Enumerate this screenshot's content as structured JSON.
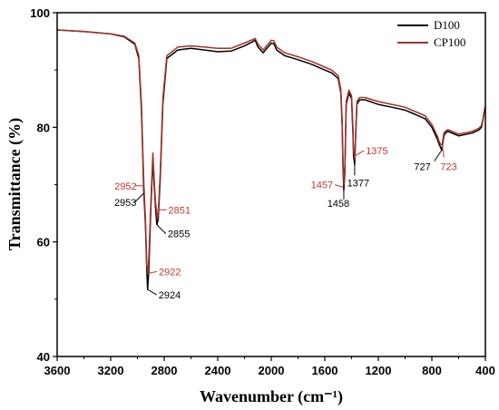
{
  "chart_data": {
    "type": "line",
    "xlabel": "Wavenumber (cm⁻¹)",
    "ylabel": "Transmittance (%)",
    "xlim": [
      3600,
      400
    ],
    "ylim": [
      40,
      100
    ],
    "x_ticks": [
      "3600",
      "3200",
      "2800",
      "2400",
      "2000",
      "1600",
      "1200",
      "800",
      "400"
    ],
    "y_ticks": [
      "40",
      "60",
      "80",
      "100"
    ],
    "legend_position": "top-right",
    "series": [
      {
        "name": "D100",
        "color": "#000000",
        "x": [
          3600,
          3400,
          3200,
          3100,
          3020,
          2990,
          2970,
          2960,
          2953,
          2940,
          2930,
          2924,
          2915,
          2900,
          2885,
          2875,
          2865,
          2855,
          2845,
          2830,
          2810,
          2780,
          2700,
          2600,
          2500,
          2400,
          2300,
          2200,
          2150,
          2120,
          2100,
          2060,
          2000,
          1980,
          1960,
          1900,
          1800,
          1700,
          1600,
          1550,
          1500,
          1480,
          1470,
          1465,
          1458,
          1450,
          1440,
          1420,
          1400,
          1390,
          1385,
          1377,
          1370,
          1360,
          1340,
          1300,
          1200,
          1100,
          1000,
          950,
          900,
          850,
          800,
          780,
          760,
          745,
          735,
          727,
          720,
          710,
          700,
          680,
          600,
          500,
          450,
          430,
          420,
          410,
          400
        ],
        "y": [
          97,
          96.7,
          96.3,
          95.8,
          94.5,
          92,
          83,
          75,
          69,
          63,
          55,
          51.7,
          55,
          66,
          74.5,
          70,
          66,
          63,
          64,
          71,
          84,
          92,
          93.5,
          93.8,
          93.5,
          93.2,
          93.3,
          94.2,
          94.8,
          95.2,
          94,
          93,
          94.7,
          94.6,
          93.5,
          92.5,
          91.8,
          91,
          90,
          89.5,
          88.5,
          86,
          80,
          74,
          69,
          72,
          84,
          86,
          85,
          79,
          75,
          73.5,
          78,
          84,
          84.8,
          84.8,
          84,
          83.5,
          83,
          82.5,
          82,
          81.5,
          80,
          79,
          78,
          77,
          76.5,
          76,
          77,
          78.5,
          79,
          79.3,
          78.5,
          79,
          79.5,
          80,
          81,
          82.5,
          83.5
        ]
      },
      {
        "name": "CP100",
        "color": "#a0322a",
        "x": [
          3600,
          3400,
          3200,
          3100,
          3020,
          2990,
          2970,
          2960,
          2952,
          2940,
          2930,
          2922,
          2915,
          2900,
          2885,
          2875,
          2865,
          2851,
          2845,
          2830,
          2810,
          2780,
          2700,
          2600,
          2500,
          2400,
          2300,
          2200,
          2150,
          2120,
          2100,
          2060,
          2000,
          1980,
          1960,
          1900,
          1800,
          1700,
          1600,
          1550,
          1500,
          1480,
          1470,
          1465,
          1457,
          1450,
          1440,
          1420,
          1400,
          1390,
          1385,
          1375,
          1370,
          1360,
          1340,
          1300,
          1200,
          1100,
          1000,
          950,
          900,
          850,
          800,
          780,
          760,
          745,
          735,
          723,
          720,
          710,
          700,
          680,
          600,
          500,
          450,
          430,
          420,
          410,
          400
        ],
        "y": [
          97,
          96.7,
          96.3,
          95.9,
          94.7,
          92.5,
          84,
          76,
          70,
          64,
          56,
          54.5,
          57,
          67,
          75.5,
          71,
          67,
          64,
          65,
          72,
          85,
          92.5,
          94,
          94.2,
          94,
          93.8,
          93.8,
          94.7,
          95.2,
          95.5,
          94.5,
          93.5,
          95.2,
          95.1,
          94,
          93,
          92.3,
          91.5,
          90.5,
          90,
          89,
          86.5,
          81,
          75,
          70,
          73,
          84.5,
          86.5,
          85.5,
          80,
          76,
          74.5,
          78.5,
          84.5,
          85.2,
          85.2,
          84.5,
          84,
          83.5,
          83,
          82.5,
          82,
          80.5,
          79.5,
          78.5,
          77.5,
          77,
          77,
          77.5,
          79,
          79.3,
          79.6,
          78.8,
          79.3,
          79.8,
          80.3,
          81.2,
          82.7,
          83.7
        ]
      }
    ],
    "annotations": [
      {
        "text": "2952",
        "x": 2952,
        "y": 69.8,
        "color": "#c0392b"
      },
      {
        "text": "2953",
        "x": 2953,
        "y": 68.5,
        "color": "#000000"
      },
      {
        "text": "2851",
        "x": 2851,
        "y": 65.6,
        "color": "#c0392b"
      },
      {
        "text": "2855",
        "x": 2855,
        "y": 63.0,
        "color": "#000000"
      },
      {
        "text": "2922",
        "x": 2922,
        "y": 54.5,
        "color": "#c0392b"
      },
      {
        "text": "2924",
        "x": 2924,
        "y": 51.7,
        "color": "#000000"
      },
      {
        "text": "1457",
        "x": 1457,
        "y": 69.5,
        "color": "#c0392b"
      },
      {
        "text": "1458",
        "x": 1458,
        "y": 69.0,
        "color": "#000000"
      },
      {
        "text": "1375",
        "x": 1375,
        "y": 75.0,
        "color": "#c0392b"
      },
      {
        "text": "1377",
        "x": 1377,
        "y": 73.5,
        "color": "#000000"
      },
      {
        "text": "727",
        "x": 727,
        "y": 76.0,
        "color": "#000000"
      },
      {
        "text": "723",
        "x": 723,
        "y": 77.0,
        "color": "#c0392b"
      }
    ]
  }
}
